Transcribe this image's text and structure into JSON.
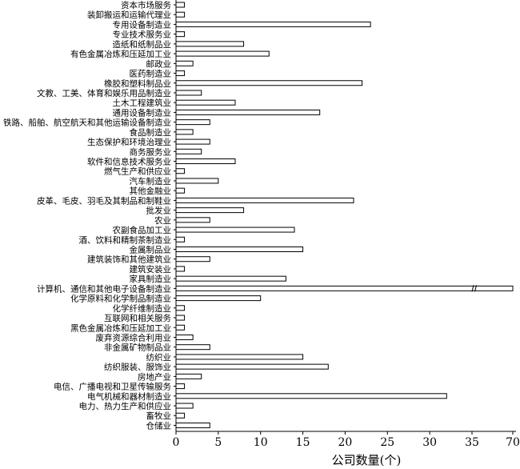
{
  "chart_data": {
    "type": "bar",
    "orientation": "horizontal",
    "title": "",
    "xlabel": "公司数量(个)",
    "ylabel": "",
    "xlim": [
      0,
      40
    ],
    "x_axis_break": {
      "from": 35,
      "to": 70
    },
    "x_ticks": [
      0,
      5,
      10,
      15,
      20,
      25,
      30,
      35,
      70
    ],
    "x_tick_labels": [
      "0",
      "5",
      "10",
      "15",
      "20",
      "25",
      "30",
      "35",
      "70"
    ],
    "grid": false,
    "legend": "none",
    "categories": [
      "资本市场服务",
      "装卸搬运和运输代理业",
      "专用设备制造业",
      "专业技术服务业",
      "造纸和纸制品业",
      "有色金属冶炼和压延加工业",
      "邮政业",
      "医药制造业",
      "橡胶和塑料制品业",
      "文教、工美、体育和娱乐用品制造业",
      "土木工程建筑业",
      "通用设备制造业",
      "铁路、船舶、航空航天和其他运输设备制造业",
      "食品制造业",
      "生态保护和环境治理业",
      "商务服务业",
      "软件和信息技术服务业",
      "燃气生产和供应业",
      "汽车制造业",
      "其他金融业",
      "皮革、毛皮、羽毛及其制品和制鞋业",
      "批发业",
      "农业",
      "农副食品加工业",
      "酒、饮料和精制茶制造业",
      "金属制品业",
      "建筑装饰和其他建筑业",
      "建筑安装业",
      "家具制造业",
      "计算机、通信和其他电子设备制造业",
      "化学原料和化学制品制造业",
      "化学纤维制造业",
      "互联网和相关服务",
      "黑色金属冶炼和压延加工业",
      "废弃资源综合利用业",
      "非金属矿物制品业",
      "纺织业",
      "纺织服装、服饰业",
      "房地产业",
      "电信、广播电视和卫星传输服务",
      "电气机械和器材制造业",
      "电力、热力生产和供应业",
      "畜牧业",
      "仓储业"
    ],
    "values": [
      1,
      1,
      23,
      1,
      8,
      11,
      2,
      1,
      22,
      3,
      7,
      17,
      4,
      2,
      4,
      3,
      7,
      1,
      5,
      1,
      21,
      8,
      4,
      14,
      1,
      15,
      4,
      1,
      13,
      70,
      10,
      1,
      1,
      1,
      2,
      4,
      15,
      18,
      3,
      1,
      32,
      2,
      1,
      4
    ]
  }
}
